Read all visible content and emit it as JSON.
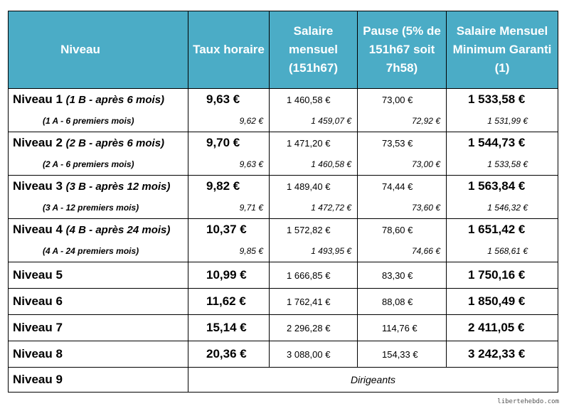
{
  "headers": [
    "Niveau",
    "Taux horaire",
    "Salaire mensuel (151h67)",
    "Pause (5% de 151h67 soit 7h58)",
    "Salaire Mensuel Minimum Garanti (1)"
  ],
  "rows_split": [
    {
      "level": "Niveau 1 ",
      "level_note": "(1 B - après 6 mois)",
      "sub_note": "(1 A - 6 premiers mois)",
      "taux": "9,63 €",
      "salaire": "1 460,58 €",
      "pause": "73,00 €",
      "garanti": "1 533,58 €",
      "s_taux": "9,62 €",
      "s_salaire": "1 459,07 €",
      "s_pause": "72,92 €",
      "s_garanti": "1 531,99 €"
    },
    {
      "level": "Niveau 2 ",
      "level_note": "(2 B - après 6 mois)",
      "sub_note": "(2 A - 6 premiers mois)",
      "taux": "9,70 €",
      "salaire": "1 471,20 €",
      "pause": "73,53 €",
      "garanti": "1 544,73 €",
      "s_taux": "9,63 €",
      "s_salaire": "1 460,58 €",
      "s_pause": "73,00 €",
      "s_garanti": "1 533,58 €"
    },
    {
      "level": "Niveau 3 ",
      "level_note": "(3 B - après 12 mois)",
      "sub_note": "(3 A - 12 premiers mois)",
      "taux": "9,82 €",
      "salaire": "1 489,40 €",
      "pause": "74,44 €",
      "garanti": "1 563,84 €",
      "s_taux": "9,71 €",
      "s_salaire": "1 472,72 €",
      "s_pause": "73,60 €",
      "s_garanti": "1 546,32 €"
    },
    {
      "level": "Niveau 4 ",
      "level_note": "(4 B - après 24 mois)",
      "sub_note": "(4 A - 24 premiers mois)",
      "taux": "10,37 €",
      "salaire": "1 572,82 €",
      "pause": "78,60 €",
      "garanti": "1 651,42 €",
      "s_taux": "9,85 €",
      "s_salaire": "1 493,95 €",
      "s_pause": "74,66 €",
      "s_garanti": "1 568,61 €"
    }
  ],
  "rows_single": [
    {
      "level": "Niveau 5",
      "taux": "10,99 €",
      "salaire": "1 666,85 €",
      "pause": "83,30 €",
      "garanti": "1 750,16 €"
    },
    {
      "level": "Niveau 6",
      "taux": "11,62 €",
      "salaire": "1 762,41 €",
      "pause": "88,08 €",
      "garanti": "1 850,49 €"
    },
    {
      "level": "Niveau 7",
      "taux": "15,14 €",
      "salaire": "2 296,28 €",
      "pause": "114,76 €",
      "garanti": "2 411,05 €"
    },
    {
      "level": "Niveau 8",
      "taux": "20,36 €",
      "salaire": "3 088,00 €",
      "pause": "154,33 €",
      "garanti": "3 242,33 €"
    }
  ],
  "last_row": {
    "level": "Niveau 9",
    "text": "Dirigeants"
  },
  "watermark": "libertehebdo.com",
  "colors": {
    "header_bg": "#4bacc6",
    "header_text": "#ffffff"
  }
}
